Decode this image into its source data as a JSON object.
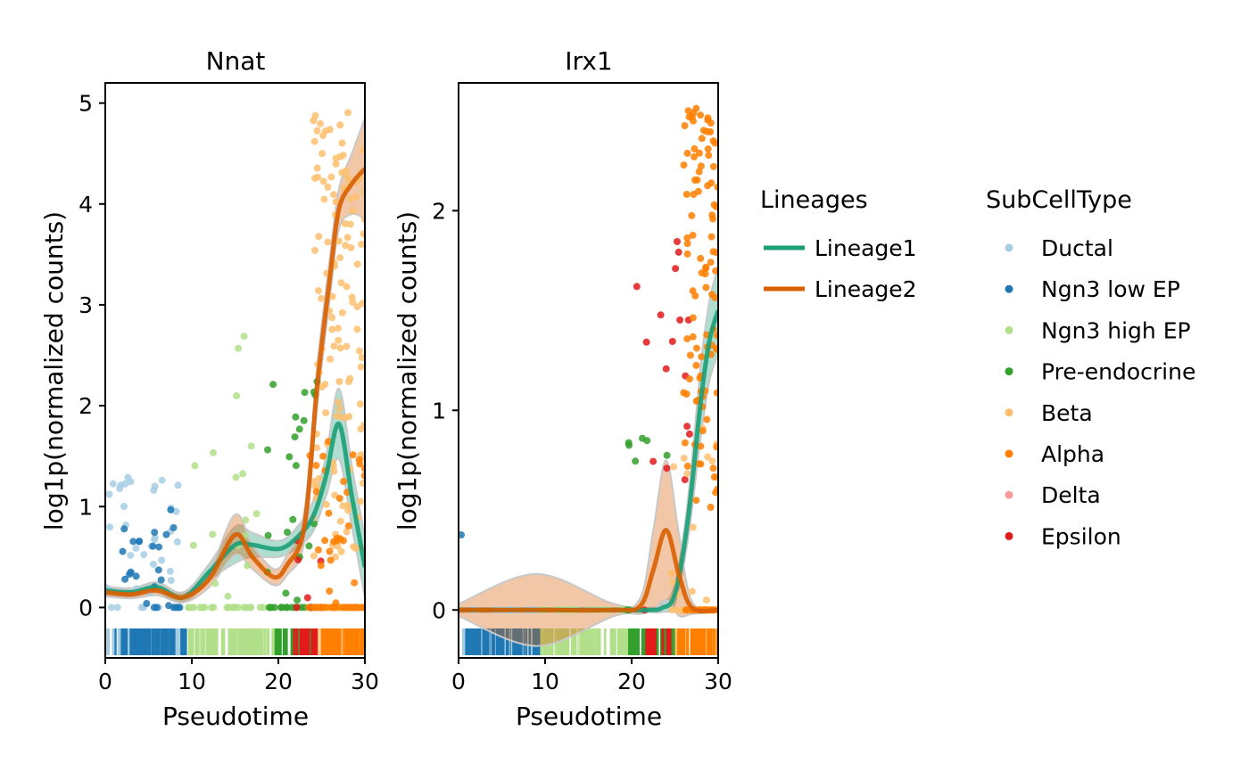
{
  "colors": {
    "lineage1": "#1b9e77",
    "lineage2": "#d95f02",
    "Ductal": "#a6cee3",
    "Ngn3 low EP": "#1f78b4",
    "Ngn3 high EP": "#b2df8a",
    "Pre-endocrine": "#33a02c",
    "Beta": "#fdbf6f",
    "Alpha": "#ff7f00",
    "Delta": "#fb9a99",
    "Epsilon": "#e31a1c"
  },
  "legend": {
    "lineages_title": "Lineages",
    "lineages": [
      "Lineage1",
      "Lineage2"
    ],
    "subcell_title": "SubCellType",
    "subcell_types": [
      "Ductal",
      "Ngn3 low EP",
      "Ngn3 high EP",
      "Pre-endocrine",
      "Beta",
      "Alpha",
      "Delta",
      "Epsilon"
    ]
  },
  "chart_data": [
    {
      "type": "scatter",
      "title": "Nnat",
      "xlabel": "Pseudotime",
      "ylabel": "log1p(normalized counts)",
      "xlim": [
        0,
        30
      ],
      "ylim": [
        -0.5,
        5.2
      ],
      "xticks": [
        "0",
        "10",
        "20",
        "30"
      ],
      "yticks": [
        "0",
        "1",
        "2",
        "3",
        "4",
        "5"
      ],
      "grid": false,
      "lines": [
        {
          "name": "Lineage1",
          "x": [
            0,
            3,
            6,
            9,
            12,
            15,
            17,
            20,
            22,
            24,
            25.5,
            27,
            28.5,
            30
          ],
          "y": [
            0.17,
            0.15,
            0.2,
            0.1,
            0.35,
            0.62,
            0.62,
            0.58,
            0.68,
            0.9,
            1.3,
            1.82,
            1.1,
            0.4
          ],
          "band": [
            0.04,
            0.04,
            0.05,
            0.05,
            0.08,
            0.18,
            0.12,
            0.08,
            0.1,
            0.15,
            0.2,
            0.35,
            0.3,
            0.3
          ]
        },
        {
          "name": "Lineage2",
          "x": [
            0,
            3,
            6,
            9,
            12,
            15,
            17,
            19.5,
            21,
            23,
            24.5,
            26,
            27,
            28.5,
            30
          ],
          "y": [
            0.15,
            0.13,
            0.17,
            0.1,
            0.28,
            0.72,
            0.5,
            0.3,
            0.42,
            0.8,
            2.2,
            3.3,
            3.95,
            4.2,
            4.35
          ],
          "band": [
            0.04,
            0.04,
            0.05,
            0.05,
            0.08,
            0.2,
            0.12,
            0.08,
            0.1,
            0.15,
            0.2,
            0.2,
            0.2,
            0.3,
            0.5
          ]
        }
      ],
      "point_groups": [
        {
          "type": "Ductal",
          "n": 40,
          "x": [
            0,
            8.5
          ],
          "y": [
            0,
            1.3
          ],
          "zero_frac": 0.25
        },
        {
          "type": "Ngn3 low EP",
          "n": 26,
          "x": [
            2,
            9
          ],
          "y": [
            0,
            1.05
          ],
          "zero_frac": 0.25
        },
        {
          "type": "Ngn3 high EP",
          "n": 40,
          "x": [
            9.5,
            19.5
          ],
          "y": [
            0,
            3.0
          ],
          "zero_frac": 0.45
        },
        {
          "type": "Pre-endocrine",
          "n": 36,
          "x": [
            18.5,
            24.5
          ],
          "y": [
            0,
            2.3
          ],
          "zero_frac": 0.35
        },
        {
          "type": "Epsilon",
          "n": 8,
          "x": [
            22,
            25
          ],
          "y": [
            0,
            0.7
          ],
          "zero_frac": 0.4
        },
        {
          "type": "Beta",
          "n": 150,
          "x": [
            24,
            30
          ],
          "y": [
            0.4,
            4.95
          ],
          "zero_frac": 0.08
        },
        {
          "type": "Alpha",
          "n": 55,
          "x": [
            23.5,
            30
          ],
          "y": [
            0,
            1.8
          ],
          "zero_frac": 0.45
        }
      ],
      "rug": [
        {
          "type": "Ductal",
          "from": 0,
          "to": 9
        },
        {
          "type": "Ngn3 low EP",
          "from": 1,
          "to": 9.3
        },
        {
          "type": "Ngn3 high EP",
          "from": 9.3,
          "to": 19.5
        },
        {
          "type": "Pre-endocrine",
          "from": 19.5,
          "to": 24.5
        },
        {
          "type": "Epsilon",
          "from": 21.5,
          "to": 24.5
        },
        {
          "type": "Beta",
          "from": 24.5,
          "to": 30
        },
        {
          "type": "Alpha",
          "from": 24.5,
          "to": 30
        }
      ]
    },
    {
      "type": "scatter",
      "title": "Irx1",
      "xlabel": "Pseudotime",
      "ylabel": "log1p(normalized counts)",
      "xlim": [
        0,
        30
      ],
      "ylim": [
        -0.24,
        2.64
      ],
      "xticks": [
        "0",
        "10",
        "20",
        "30"
      ],
      "yticks": [
        "0",
        "1",
        "2"
      ],
      "grid": false,
      "lines": [
        {
          "name": "Lineage1",
          "x": [
            0,
            10,
            20,
            22,
            23.5,
            25,
            26.5,
            28,
            29,
            30
          ],
          "y": [
            0,
            0,
            0,
            0.0,
            0.01,
            0.08,
            0.45,
            1.05,
            1.35,
            1.5
          ],
          "band": [
            0.01,
            0.01,
            0.01,
            0.01,
            0.02,
            0.05,
            0.1,
            0.18,
            0.2,
            0.22
          ]
        },
        {
          "name": "Lineage2",
          "x": [
            0,
            9,
            18,
            21,
            22.5,
            24,
            25.5,
            27,
            30
          ],
          "y": [
            0,
            0,
            0,
            0.02,
            0.2,
            0.4,
            0.17,
            0.01,
            0
          ],
          "band": [
            0.03,
            0.18,
            0.03,
            0.04,
            0.2,
            0.35,
            0.2,
            0.03,
            0.01
          ]
        }
      ],
      "point_groups": [
        {
          "type": "Ngn3 low EP",
          "n": 1,
          "x": [
            0.3,
            0.4
          ],
          "y": [
            0.37,
            0.38
          ],
          "zero_frac": 0
        },
        {
          "type": "Ductal",
          "n": 18,
          "x": [
            0,
            9
          ],
          "y": [
            0,
            0
          ],
          "zero_frac": 1
        },
        {
          "type": "Ngn3 high EP",
          "n": 20,
          "x": [
            9.5,
            19.5
          ],
          "y": [
            0,
            0
          ],
          "zero_frac": 1
        },
        {
          "type": "Pre-endocrine",
          "n": 8,
          "x": [
            19,
            25
          ],
          "y": [
            0.72,
            0.86
          ],
          "zero_frac": 0.6
        },
        {
          "type": "Epsilon",
          "n": 18,
          "x": [
            20.5,
            27
          ],
          "y": [
            0.55,
            1.93
          ],
          "zero_frac": 0.2
        },
        {
          "type": "Beta",
          "n": 30,
          "x": [
            24.5,
            30
          ],
          "y": [
            0,
            0.95
          ],
          "zero_frac": 0.5
        },
        {
          "type": "Alpha",
          "n": 120,
          "x": [
            26,
            30
          ],
          "y": [
            0.5,
            2.52
          ],
          "zero_frac": 0.15
        }
      ],
      "rug": [
        {
          "type": "Ductal",
          "from": 0,
          "to": 9
        },
        {
          "type": "Ngn3 low EP",
          "from": 0.5,
          "to": 9.3
        },
        {
          "type": "Ngn3 high EP",
          "from": 9.3,
          "to": 19.5
        },
        {
          "type": "Pre-endocrine",
          "from": 19.5,
          "to": 25
        },
        {
          "type": "Epsilon",
          "from": 21.5,
          "to": 24.5
        },
        {
          "type": "Beta",
          "from": 25,
          "to": 30
        },
        {
          "type": "Alpha",
          "from": 25,
          "to": 30
        }
      ]
    }
  ]
}
